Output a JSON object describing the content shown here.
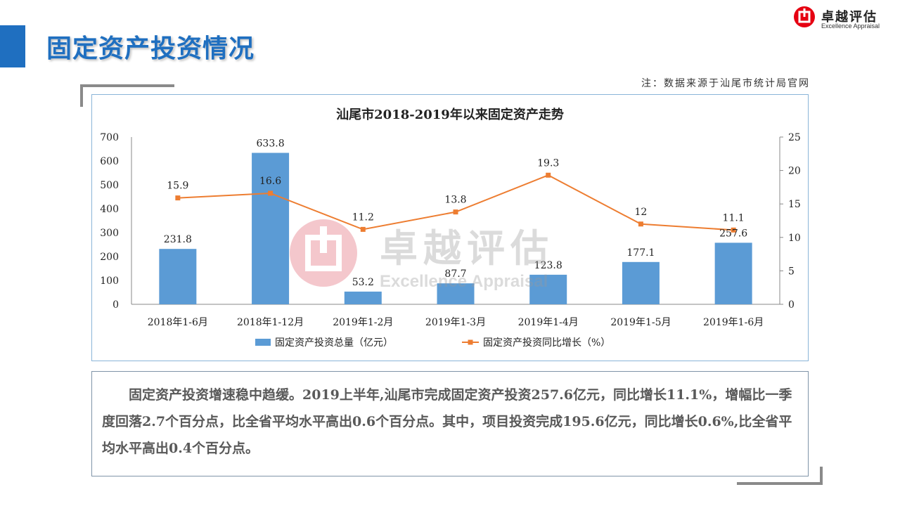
{
  "header": {
    "title": "固定资产投资情况",
    "logo_cn": "卓越评估",
    "logo_en": "Excellence Appraisal",
    "source_note": "注：数据来源于汕尾市统计局官网"
  },
  "watermark": {
    "cn": "卓越评估",
    "en": "Excellence Appraisal"
  },
  "chart_data": {
    "type": "bar+line",
    "title": "汕尾市2018-2019年以来固定资产走势",
    "categories": [
      "2018年1-6月",
      "2018年1-12月",
      "2019年1-2月",
      "2019年1-3月",
      "2019年1-4月",
      "2019年1-5月",
      "2019年1-6月"
    ],
    "series": [
      {
        "name": "固定资产投资总量（亿元）",
        "type": "bar",
        "axis": "left",
        "values": [
          231.8,
          633.8,
          53.2,
          87.7,
          123.8,
          177.1,
          257.6
        ]
      },
      {
        "name": "固定资产投资同比增长（%）",
        "type": "line",
        "axis": "right",
        "values": [
          15.9,
          16.6,
          11.2,
          13.8,
          19.3,
          12,
          11.1
        ]
      }
    ],
    "ylim_left": [
      0,
      700
    ],
    "yticks_left": [
      0,
      100,
      200,
      300,
      400,
      500,
      600,
      700
    ],
    "ylim_right": [
      0,
      25
    ],
    "yticks_right": [
      0,
      5,
      10,
      15,
      20,
      25
    ],
    "grid": false,
    "legend": "bottom",
    "colors": {
      "bar": "#5b9bd5",
      "line": "#ed7d31"
    }
  },
  "summary": {
    "text": "固定资产投资增速稳中趋缓。2019上半年,汕尾市完成固定资产投资257.6亿元，同比增长11.1%，增幅比一季度回落2.7个百分点，比全省平均水平高出0.6个百分点。其中，项目投资完成195.6亿元，同比增长0.6%,比全省平均水平高出0.4个百分点。"
  }
}
